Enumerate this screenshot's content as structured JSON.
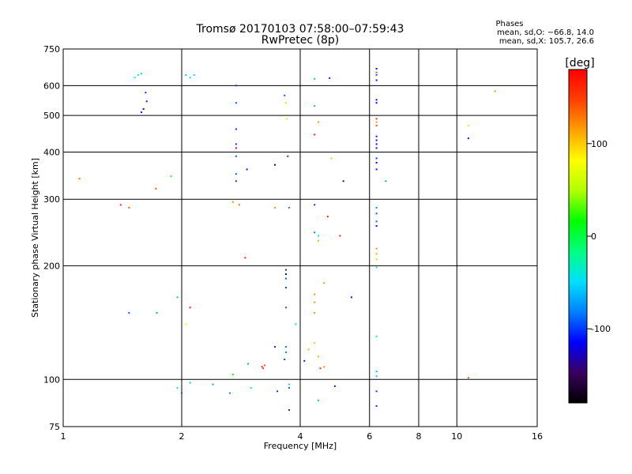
{
  "chart_data": {
    "type": "scatter",
    "title": "Tromsø 20170103 07:58:00–07:59:43",
    "subtitle": "RwPretec (8p)",
    "xlabel": "Frequency [MHz]",
    "ylabel": "Stationary phase Virtual Height [km]",
    "x_scale": "log",
    "y_scale": "log",
    "xlim": [
      1,
      16
    ],
    "ylim": [
      75,
      750
    ],
    "x_ticks": [
      1,
      2,
      4,
      6,
      8,
      10,
      16
    ],
    "y_ticks": [
      75,
      100,
      200,
      300,
      400,
      500,
      600,
      750
    ],
    "grid": true,
    "legend": "top-right",
    "stats": {
      "heading": "Phases",
      "line_o": "mean, sd,O: −66.8, 14.0",
      "line_x": "mean, sd,X: 105.7, 26.6"
    },
    "colorbar": {
      "label": "[deg]",
      "ticks": [
        100,
        0,
        -100
      ],
      "range": [
        -180,
        180
      ],
      "palette": [
        "#000000",
        "#3a0060",
        "#0000ff",
        "#0080ff",
        "#00e0ff",
        "#00ff80",
        "#00ff00",
        "#b0ff00",
        "#ffff00",
        "#ffa000",
        "#ff4000",
        "#ff0000"
      ]
    },
    "series": [
      {
        "points": [
          [
            1.52,
            630,
            -40
          ],
          [
            1.55,
            640,
            -40
          ],
          [
            1.58,
            645,
            -55
          ],
          [
            1.62,
            575,
            -100
          ],
          [
            1.63,
            545,
            -110
          ],
          [
            1.6,
            520,
            -110
          ],
          [
            1.58,
            510,
            -110
          ],
          [
            2.05,
            640,
            -60
          ],
          [
            2.1,
            630,
            -40
          ],
          [
            2.15,
            640,
            -50
          ],
          [
            1.1,
            340,
            130
          ],
          [
            1.4,
            290,
            160
          ],
          [
            1.47,
            285,
            140
          ],
          [
            1.72,
            320,
            140
          ],
          [
            1.88,
            345,
            20
          ],
          [
            2.75,
            600,
            -100
          ],
          [
            2.75,
            540,
            -90
          ],
          [
            2.75,
            460,
            -100
          ],
          [
            2.75,
            420,
            -100
          ],
          [
            2.75,
            410,
            180
          ],
          [
            2.75,
            390,
            -90
          ],
          [
            2.75,
            350,
            -90
          ],
          [
            2.75,
            335,
            -100
          ],
          [
            2.93,
            360,
            -110
          ],
          [
            2.7,
            295,
            120
          ],
          [
            2.8,
            290,
            130
          ],
          [
            2.9,
            210,
            160
          ],
          [
            3.45,
            370,
            -120
          ],
          [
            3.45,
            285,
            120
          ],
          [
            3.65,
            565,
            -90
          ],
          [
            3.68,
            540,
            60
          ],
          [
            3.7,
            490,
            90
          ],
          [
            3.72,
            390,
            -100
          ],
          [
            3.75,
            285,
            -80
          ],
          [
            3.68,
            195,
            -100
          ],
          [
            3.68,
            190,
            -110
          ],
          [
            3.68,
            185,
            -90
          ],
          [
            3.68,
            175,
            -100
          ],
          [
            3.68,
            155,
            -90
          ],
          [
            3.9,
            140,
            -40
          ],
          [
            3.68,
            122,
            -80
          ],
          [
            3.68,
            118,
            -80
          ],
          [
            3.2,
            108,
            160
          ],
          [
            3.22,
            107,
            150
          ],
          [
            3.25,
            109,
            140
          ],
          [
            2.7,
            103,
            20
          ],
          [
            2.95,
            110,
            -70
          ],
          [
            3.45,
            122,
            -100
          ],
          [
            3.65,
            113,
            -100
          ],
          [
            3.75,
            97,
            -40
          ],
          [
            3.75,
            95,
            -90
          ],
          [
            3.75,
            83,
            -100
          ],
          [
            4.1,
            112,
            -110
          ],
          [
            4.2,
            120,
            110
          ],
          [
            4.35,
            125,
            100
          ],
          [
            4.35,
            150,
            120
          ],
          [
            4.35,
            160,
            120
          ],
          [
            4.35,
            168,
            120
          ],
          [
            4.6,
            180,
            120
          ],
          [
            4.45,
            115,
            110
          ],
          [
            4.5,
            107,
            160
          ],
          [
            4.6,
            108,
            120
          ],
          [
            4.35,
            625,
            -60
          ],
          [
            4.75,
            628,
            -110
          ],
          [
            4.35,
            530,
            -60
          ],
          [
            4.35,
            445,
            160
          ],
          [
            4.45,
            480,
            120
          ],
          [
            4.8,
            385,
            100
          ],
          [
            5.15,
            335,
            -130
          ],
          [
            4.35,
            290,
            -100
          ],
          [
            4.7,
            270,
            160
          ],
          [
            4.35,
            245,
            -80
          ],
          [
            4.45,
            240,
            -40
          ],
          [
            5.05,
            240,
            160
          ],
          [
            4.45,
            233,
            110
          ],
          [
            5.4,
            165,
            -110
          ],
          [
            4.45,
            88,
            -60
          ],
          [
            4.9,
            96,
            -110
          ],
          [
            6.25,
            665,
            -110
          ],
          [
            6.25,
            650,
            140
          ],
          [
            6.25,
            640,
            -90
          ],
          [
            6.25,
            620,
            -110
          ],
          [
            6.25,
            550,
            -120
          ],
          [
            6.25,
            540,
            -120
          ],
          [
            6.25,
            490,
            160
          ],
          [
            6.25,
            480,
            120
          ],
          [
            6.25,
            470,
            140
          ],
          [
            6.25,
            440,
            -110
          ],
          [
            6.25,
            430,
            -120
          ],
          [
            6.25,
            420,
            -120
          ],
          [
            6.25,
            410,
            -110
          ],
          [
            6.25,
            385,
            -100
          ],
          [
            6.25,
            375,
            -120
          ],
          [
            6.25,
            360,
            -110
          ],
          [
            6.6,
            335,
            -70
          ],
          [
            6.25,
            285,
            -80
          ],
          [
            6.25,
            275,
            -90
          ],
          [
            6.25,
            262,
            -90
          ],
          [
            6.25,
            255,
            -110
          ],
          [
            6.25,
            222,
            120
          ],
          [
            6.25,
            215,
            110
          ],
          [
            6.25,
            208,
            100
          ],
          [
            6.25,
            198,
            -40
          ],
          [
            6.25,
            130,
            -40
          ],
          [
            6.25,
            105,
            -60
          ],
          [
            6.25,
            102,
            -60
          ],
          [
            6.25,
            93,
            -100
          ],
          [
            6.25,
            85,
            -100
          ],
          [
            10.7,
            470,
            60
          ],
          [
            10.7,
            435,
            -110
          ],
          [
            12.5,
            580,
            120
          ],
          [
            10.7,
            101,
            140
          ],
          [
            2.1,
            155,
            170
          ],
          [
            2.05,
            140,
            80
          ],
          [
            1.95,
            165,
            -60
          ],
          [
            1.73,
            150,
            -70
          ],
          [
            1.47,
            150,
            -90
          ],
          [
            1.95,
            95,
            -50
          ],
          [
            2.0,
            92,
            -90
          ],
          [
            2.1,
            98,
            -60
          ],
          [
            2.4,
            97,
            -70
          ],
          [
            2.65,
            92,
            -80
          ],
          [
            3.0,
            95,
            -50
          ],
          [
            3.5,
            93,
            -100
          ]
        ]
      }
    ]
  }
}
